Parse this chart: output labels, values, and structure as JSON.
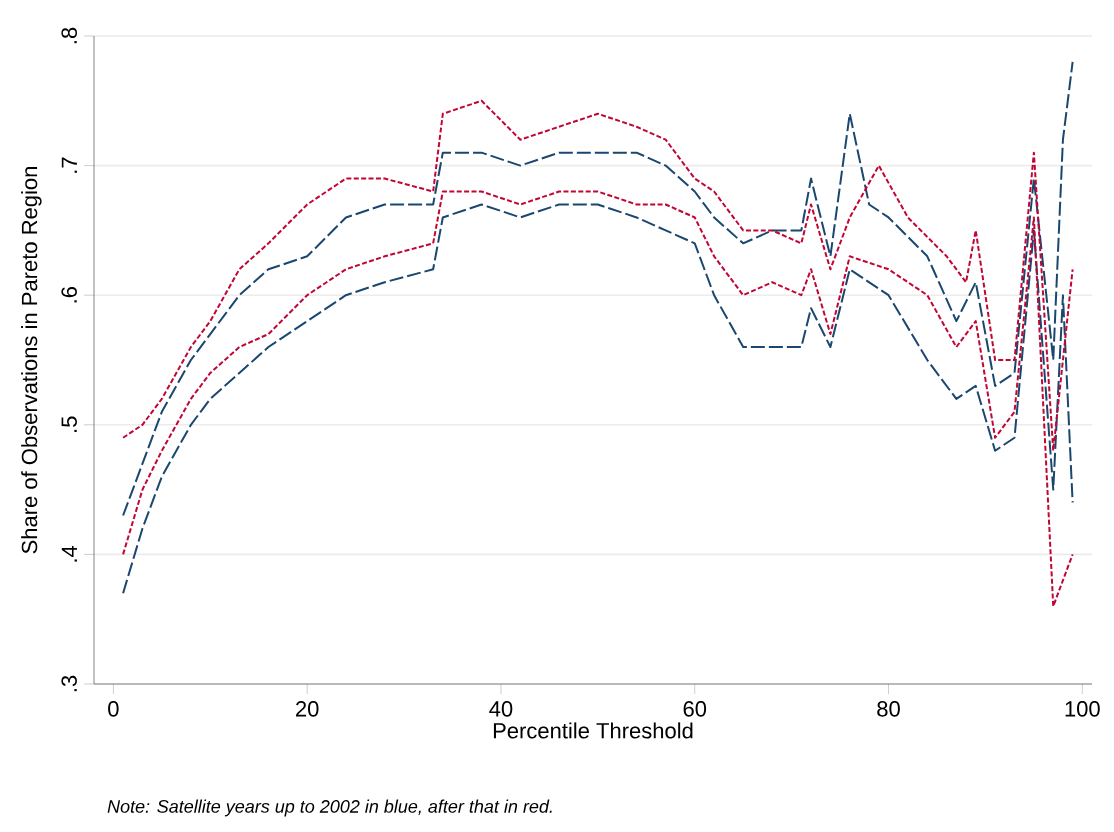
{
  "chart_data": {
    "type": "line",
    "xlabel": "Percentile Threshold",
    "ylabel": "Share of Observations in Pareto Region",
    "annotations": [
      "Note: Satellite years up to 2002 in blue, after that in red."
    ],
    "xlim": [
      -2,
      101
    ],
    "xticks": [
      0,
      20,
      40,
      60,
      80,
      100
    ],
    "ylim": [
      0.3,
      0.8
    ],
    "yticks": [
      {
        "value": 0.3,
        "label": ".3"
      },
      {
        "value": 0.4,
        "label": ".4"
      },
      {
        "value": 0.5,
        "label": ".5"
      },
      {
        "value": 0.6,
        "label": ".6"
      },
      {
        "value": 0.7,
        "label": ".7"
      },
      {
        "value": 0.8,
        "label": ".8"
      }
    ],
    "grid": "y",
    "series": [
      {
        "color": "#1a476f",
        "line_style": "dashed",
        "x": [
          1,
          3,
          5,
          8,
          10,
          13,
          16,
          20,
          24,
          28,
          33,
          34,
          38,
          42,
          46,
          50,
          54,
          57,
          60,
          62,
          65,
          68,
          71,
          72,
          74,
          76,
          80,
          84,
          87,
          89,
          91,
          93,
          95,
          97,
          98,
          99
        ],
        "values": [
          0.37,
          0.42,
          0.46,
          0.5,
          0.52,
          0.54,
          0.56,
          0.58,
          0.6,
          0.61,
          0.62,
          0.66,
          0.67,
          0.66,
          0.67,
          0.67,
          0.66,
          0.65,
          0.64,
          0.6,
          0.56,
          0.56,
          0.56,
          0.59,
          0.56,
          0.62,
          0.6,
          0.55,
          0.52,
          0.53,
          0.48,
          0.49,
          0.65,
          0.45,
          0.6,
          0.44
        ]
      },
      {
        "color": "#1a476f",
        "line_style": "dashed",
        "x": [
          1,
          3,
          5,
          8,
          10,
          13,
          16,
          20,
          24,
          28,
          33,
          34,
          38,
          42,
          46,
          50,
          54,
          57,
          60,
          62,
          65,
          68,
          71,
          72,
          74,
          76,
          78,
          80,
          84,
          87,
          89,
          91,
          93,
          95,
          97,
          98,
          99
        ],
        "values": [
          0.43,
          0.47,
          0.51,
          0.55,
          0.57,
          0.6,
          0.62,
          0.63,
          0.66,
          0.67,
          0.67,
          0.71,
          0.71,
          0.7,
          0.71,
          0.71,
          0.71,
          0.7,
          0.68,
          0.66,
          0.64,
          0.65,
          0.65,
          0.69,
          0.63,
          0.74,
          0.67,
          0.66,
          0.63,
          0.58,
          0.61,
          0.53,
          0.54,
          0.69,
          0.55,
          0.72,
          0.78
        ]
      },
      {
        "color": "#c10534",
        "line_style": "dotted",
        "x": [
          1,
          3,
          5,
          8,
          10,
          13,
          16,
          20,
          24,
          28,
          33,
          34,
          38,
          42,
          46,
          50,
          54,
          57,
          60,
          62,
          65,
          68,
          71,
          72,
          74,
          76,
          79,
          82,
          86,
          88,
          89,
          91,
          93,
          95,
          97,
          99
        ],
        "values": [
          0.49,
          0.5,
          0.52,
          0.56,
          0.58,
          0.62,
          0.64,
          0.67,
          0.69,
          0.69,
          0.68,
          0.74,
          0.75,
          0.72,
          0.73,
          0.74,
          0.73,
          0.72,
          0.69,
          0.68,
          0.65,
          0.65,
          0.64,
          0.67,
          0.62,
          0.66,
          0.7,
          0.66,
          0.63,
          0.61,
          0.65,
          0.55,
          0.55,
          0.71,
          0.48,
          0.62
        ]
      },
      {
        "color": "#c10534",
        "line_style": "dotted",
        "x": [
          1,
          3,
          5,
          8,
          10,
          13,
          16,
          20,
          24,
          28,
          33,
          34,
          38,
          42,
          46,
          50,
          54,
          57,
          60,
          62,
          65,
          68,
          71,
          72,
          74,
          76,
          80,
          84,
          87,
          89,
          91,
          93,
          95,
          97,
          99
        ],
        "values": [
          0.4,
          0.45,
          0.48,
          0.52,
          0.54,
          0.56,
          0.57,
          0.6,
          0.62,
          0.63,
          0.64,
          0.68,
          0.68,
          0.67,
          0.68,
          0.68,
          0.67,
          0.67,
          0.66,
          0.63,
          0.6,
          0.61,
          0.6,
          0.62,
          0.57,
          0.63,
          0.62,
          0.6,
          0.56,
          0.58,
          0.49,
          0.51,
          0.66,
          0.36,
          0.4
        ]
      }
    ]
  }
}
